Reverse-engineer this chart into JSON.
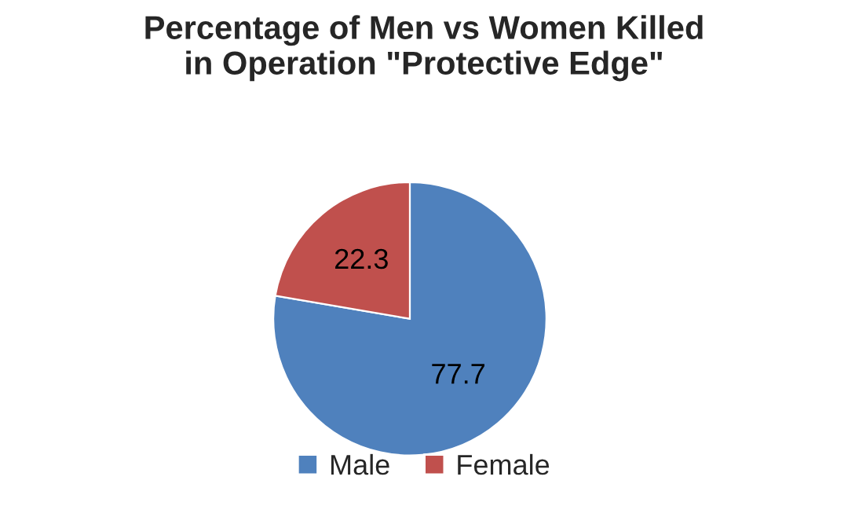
{
  "chart_data": {
    "type": "pie",
    "title": "Percentage of Men vs Women Killed\nin Operation \"Protective Edge\"",
    "categories": [
      "Male",
      "Female"
    ],
    "values": [
      77.7,
      22.3
    ],
    "colors": [
      "#4f81bd",
      "#c0504d"
    ],
    "data_labels": true,
    "legend": "bottom"
  }
}
